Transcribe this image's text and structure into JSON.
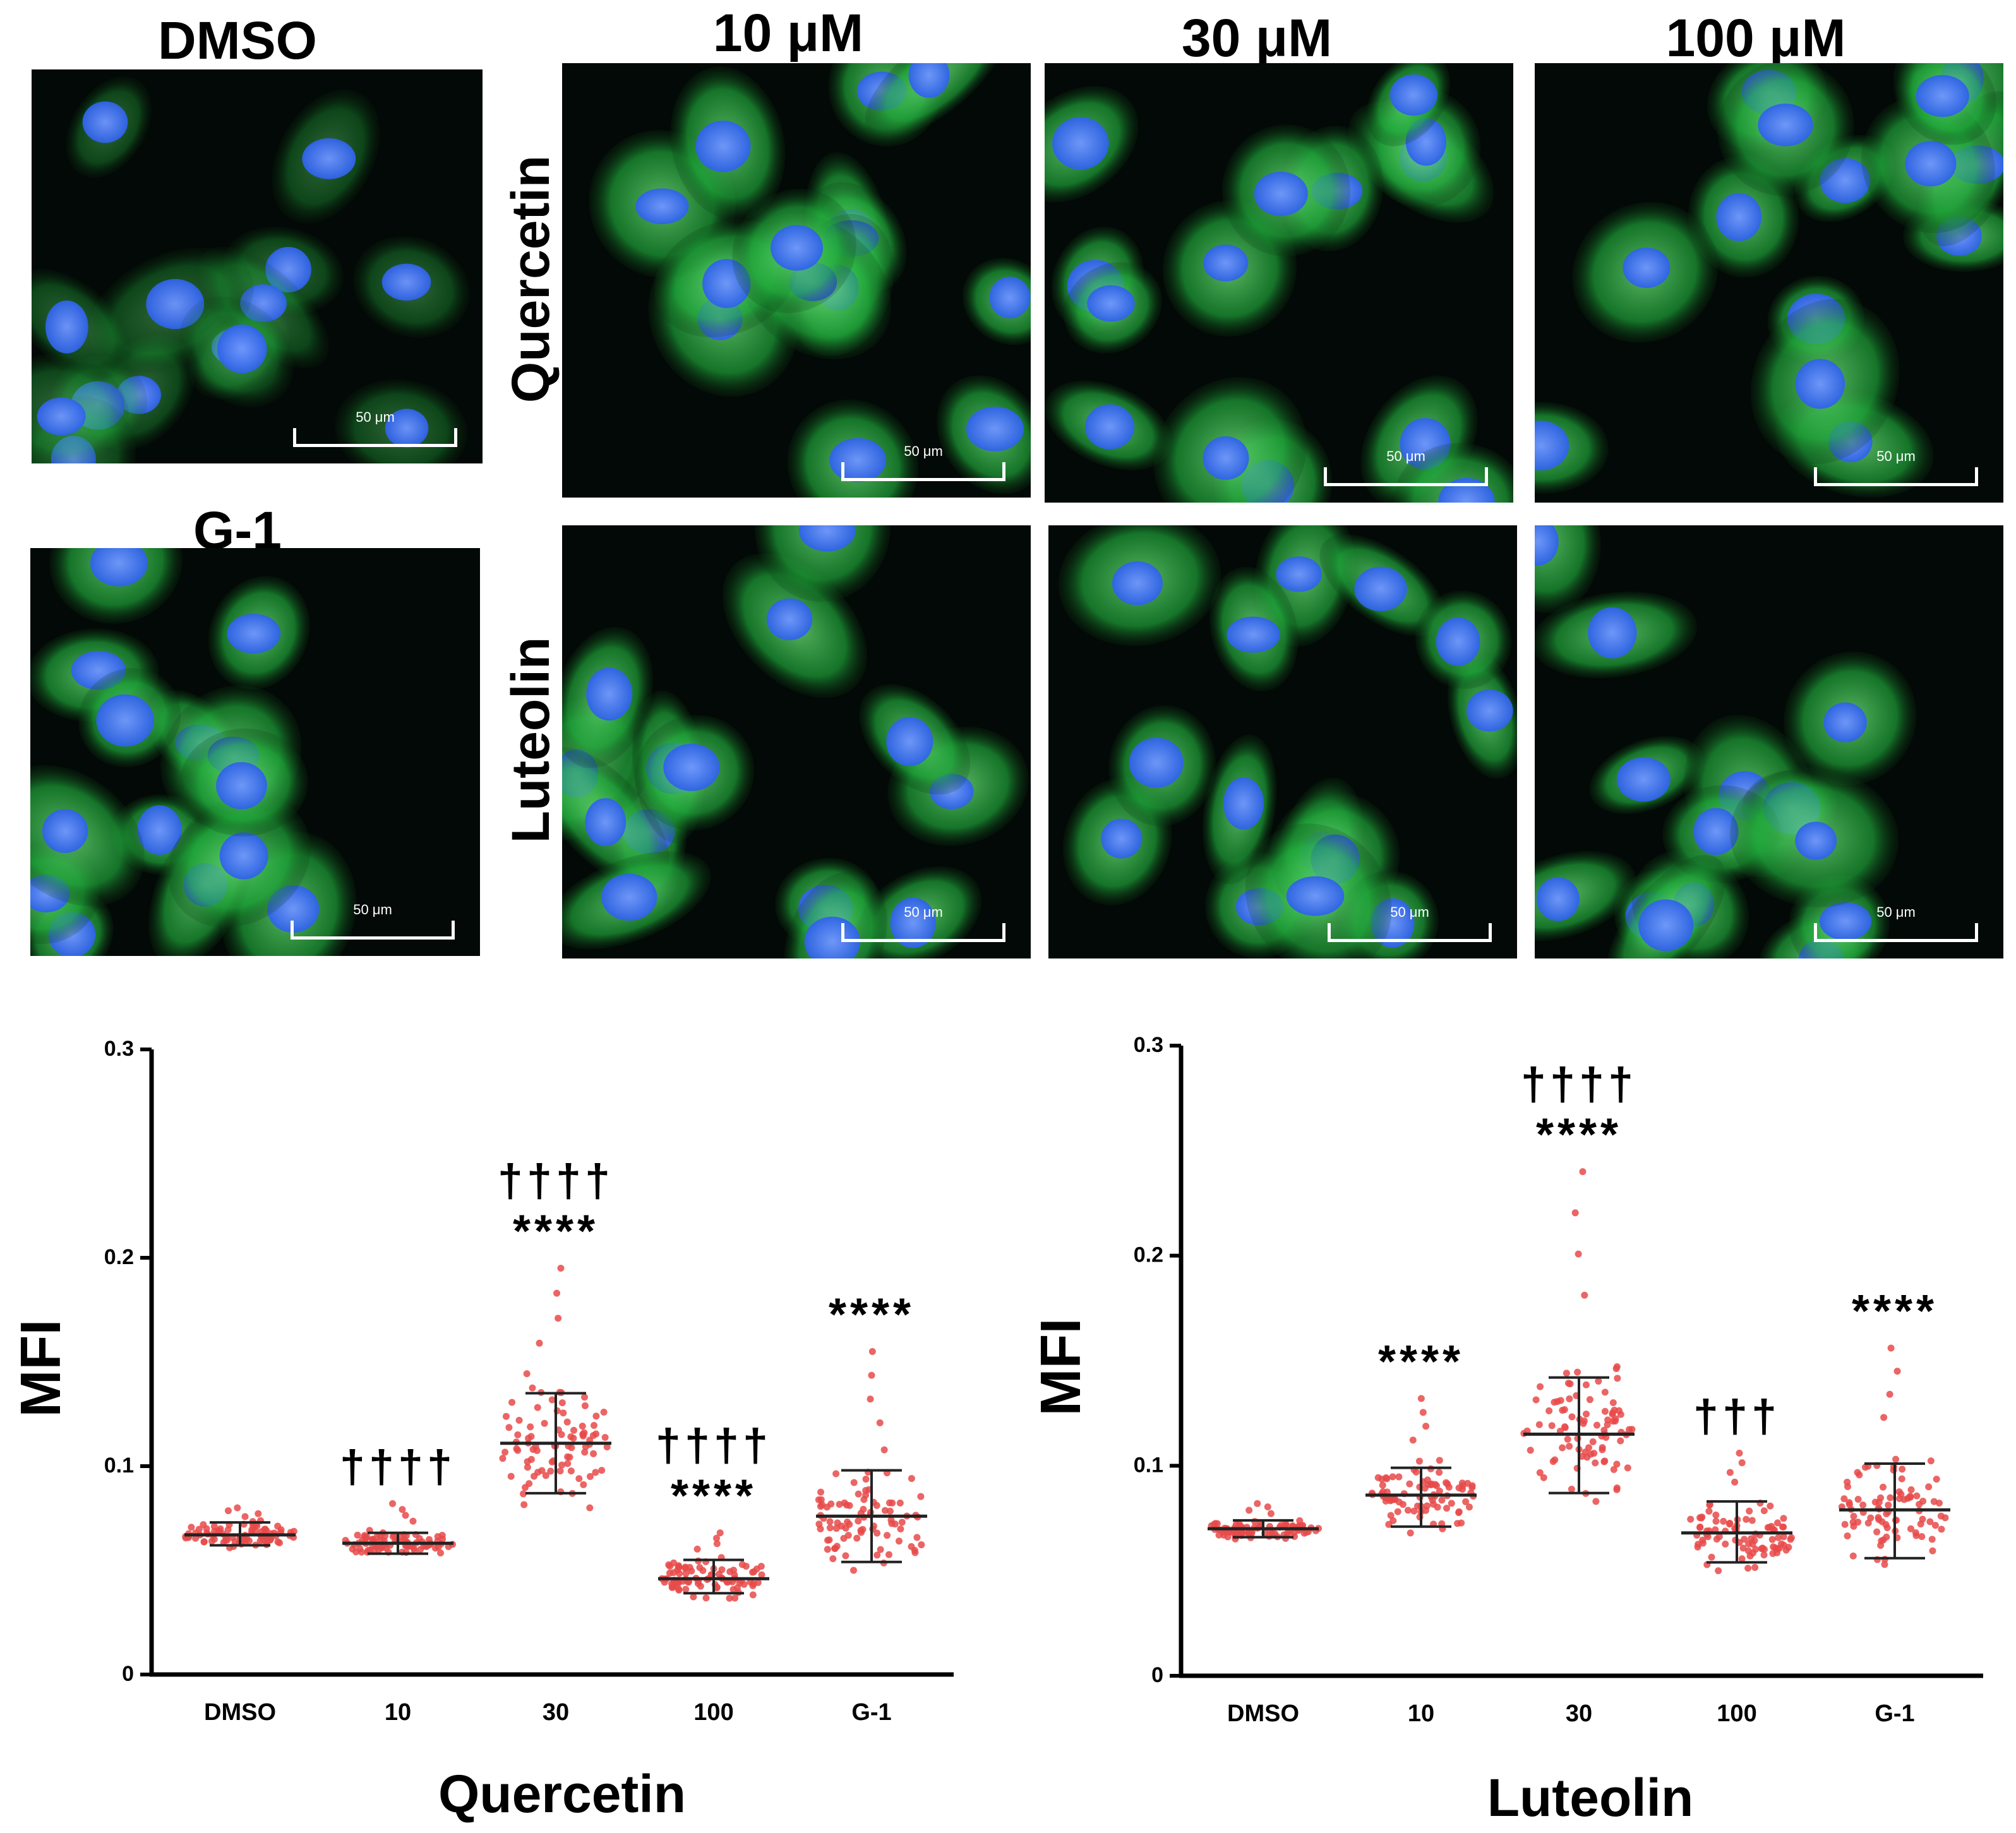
{
  "panel_titles": {
    "dmso": "DMSO",
    "g1": "G-1",
    "col_10": "10 μM",
    "col_30": "30 μM",
    "col_100": "100 μM",
    "row_quercetin": "Quercetin",
    "row_luteolin": "Luteolin"
  },
  "scale_bar_label": "50 μm",
  "colors": {
    "nucleus": "#2f62e8",
    "cytoplasm": "#1fa83a",
    "dots": "#e84a4a",
    "background": "#030906"
  },
  "chart_data": [
    {
      "type": "scatter",
      "title": "",
      "xlabel": "Quercetin",
      "ylabel": "MFI",
      "ylim": [
        0,
        0.3
      ],
      "yticks": [
        "0",
        "0.1",
        "0.2",
        "0.3"
      ],
      "categories": [
        "DMSO",
        "10",
        "30",
        "100",
        "G-1"
      ],
      "mean": [
        0.067,
        0.063,
        0.111,
        0.046,
        0.076
      ],
      "sd_upper": [
        0.073,
        0.068,
        0.135,
        0.055,
        0.098
      ],
      "sd_lower": [
        0.062,
        0.058,
        0.087,
        0.039,
        0.054
      ],
      "points_min": [
        0.058,
        0.054,
        0.08,
        0.03,
        0.05
      ],
      "points_max": [
        0.08,
        0.082,
        0.195,
        0.068,
        0.155
      ],
      "annotations": [
        "",
        "††††",
        "††††\n****",
        "††††\n****",
        "****"
      ]
    },
    {
      "type": "scatter",
      "title": "",
      "xlabel": "Luteolin",
      "ylabel": "MFI",
      "ylim": [
        0,
        0.3
      ],
      "yticks": [
        "0",
        "0.1",
        "0.2",
        "0.3"
      ],
      "categories": [
        "DMSO",
        "10",
        "30",
        "100",
        "G-1"
      ],
      "mean": [
        0.07,
        0.086,
        0.115,
        0.068,
        0.079
      ],
      "sd_upper": [
        0.074,
        0.099,
        0.142,
        0.083,
        0.101
      ],
      "sd_lower": [
        0.066,
        0.071,
        0.087,
        0.054,
        0.056
      ],
      "points_min": [
        0.061,
        0.062,
        0.083,
        0.05,
        0.053
      ],
      "points_max": [
        0.082,
        0.132,
        0.24,
        0.106,
        0.156
      ],
      "annotations": [
        "",
        "****",
        "††††\n****",
        "†††",
        "****"
      ]
    }
  ]
}
